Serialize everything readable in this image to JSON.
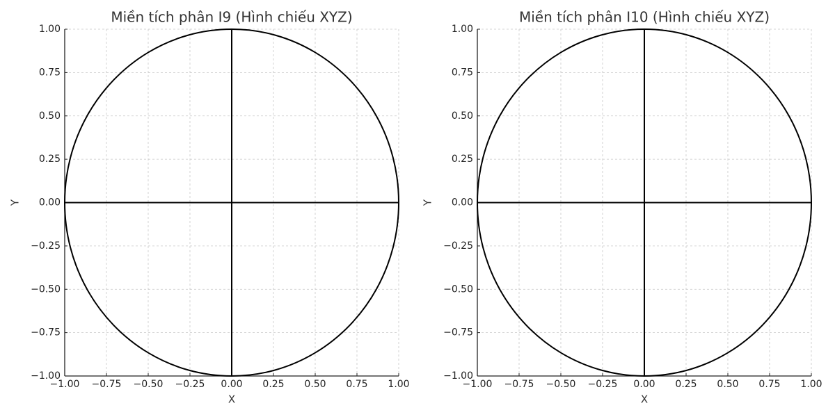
{
  "chart_data": [
    {
      "type": "line",
      "title": "Miền tích phân I9 (Hình chiếu XYZ)",
      "xlabel": "X",
      "ylabel": "Y",
      "xlim": [
        -1,
        1
      ],
      "ylim": [
        -1,
        1
      ],
      "grid": true,
      "xticks": [
        {
          "value": -1,
          "label": "−1.00"
        },
        {
          "value": -0.75,
          "label": "−0.75"
        },
        {
          "value": -0.5,
          "label": "−0.50"
        },
        {
          "value": -0.25,
          "label": "−0.25"
        },
        {
          "value": 0,
          "label": "0.00"
        },
        {
          "value": 0.25,
          "label": "0.25"
        },
        {
          "value": 0.5,
          "label": "0.50"
        },
        {
          "value": 0.75,
          "label": "0.75"
        },
        {
          "value": 1,
          "label": "1.00"
        }
      ],
      "yticks": [
        {
          "value": -1,
          "label": "−1.00"
        },
        {
          "value": -0.75,
          "label": "−0.75"
        },
        {
          "value": -0.5,
          "label": "−0.50"
        },
        {
          "value": -0.25,
          "label": "−0.25"
        },
        {
          "value": 0,
          "label": "0.00"
        },
        {
          "value": 0.25,
          "label": "0.25"
        },
        {
          "value": 0.5,
          "label": "0.50"
        },
        {
          "value": 0.75,
          "label": "0.75"
        },
        {
          "value": 1,
          "label": "1.00"
        }
      ],
      "series": [
        {
          "color": "#000000",
          "x": [
            1,
            0.966,
            0.866,
            0.707,
            0.5,
            0.259,
            0,
            -0.259,
            -0.5,
            -0.707,
            -0.866,
            -0.966,
            -1,
            -0.966,
            -0.866,
            -0.707,
            -0.5,
            -0.259,
            0,
            0.259,
            0.5,
            0.707,
            0.866,
            0.966,
            1
          ],
          "values": [
            0,
            0.259,
            0.5,
            0.707,
            0.866,
            0.966,
            1,
            0.966,
            0.866,
            0.707,
            0.5,
            0.259,
            0,
            -0.259,
            -0.5,
            -0.707,
            -0.866,
            -0.966,
            -1,
            -0.966,
            -0.866,
            -0.707,
            -0.5,
            -0.259,
            0
          ]
        },
        {
          "color": "#000000",
          "x": [
            -1,
            1
          ],
          "values": [
            0,
            0
          ]
        },
        {
          "color": "#000000",
          "x": [
            0,
            0
          ],
          "values": [
            -1,
            1
          ]
        }
      ]
    },
    {
      "type": "line",
      "title": "Miền tích phân I10 (Hình chiếu XYZ)",
      "xlabel": "X",
      "ylabel": "Y",
      "xlim": [
        -1,
        1
      ],
      "ylim": [
        -1,
        1
      ],
      "grid": true,
      "xticks": [
        {
          "value": -1,
          "label": "−1.00"
        },
        {
          "value": -0.75,
          "label": "−0.75"
        },
        {
          "value": -0.5,
          "label": "−0.50"
        },
        {
          "value": -0.25,
          "label": "−0.25"
        },
        {
          "value": 0,
          "label": "0.00"
        },
        {
          "value": 0.25,
          "label": "0.25"
        },
        {
          "value": 0.5,
          "label": "0.50"
        },
        {
          "value": 0.75,
          "label": "0.75"
        },
        {
          "value": 1,
          "label": "1.00"
        }
      ],
      "yticks": [
        {
          "value": -1,
          "label": "−1.00"
        },
        {
          "value": -0.75,
          "label": "−0.75"
        },
        {
          "value": -0.5,
          "label": "−0.50"
        },
        {
          "value": -0.25,
          "label": "−0.25"
        },
        {
          "value": 0,
          "label": "0.00"
        },
        {
          "value": 0.25,
          "label": "0.25"
        },
        {
          "value": 0.5,
          "label": "0.50"
        },
        {
          "value": 0.75,
          "label": "0.75"
        },
        {
          "value": 1,
          "label": "1.00"
        }
      ],
      "series": [
        {
          "color": "#000000",
          "x": [
            1,
            0.966,
            0.866,
            0.707,
            0.5,
            0.259,
            0,
            -0.259,
            -0.5,
            -0.707,
            -0.866,
            -0.966,
            -1,
            -0.966,
            -0.866,
            -0.707,
            -0.5,
            -0.259,
            0,
            0.259,
            0.5,
            0.707,
            0.866,
            0.966,
            1
          ],
          "values": [
            0,
            0.259,
            0.5,
            0.707,
            0.866,
            0.966,
            1,
            0.966,
            0.866,
            0.707,
            0.5,
            0.259,
            0,
            -0.259,
            -0.5,
            -0.707,
            -0.866,
            -0.966,
            -1,
            -0.966,
            -0.866,
            -0.707,
            -0.5,
            -0.259,
            0
          ]
        },
        {
          "color": "#000000",
          "x": [
            -1,
            1
          ],
          "values": [
            0,
            0
          ]
        },
        {
          "color": "#000000",
          "x": [
            0,
            0
          ],
          "values": [
            -1,
            1
          ]
        }
      ]
    }
  ]
}
